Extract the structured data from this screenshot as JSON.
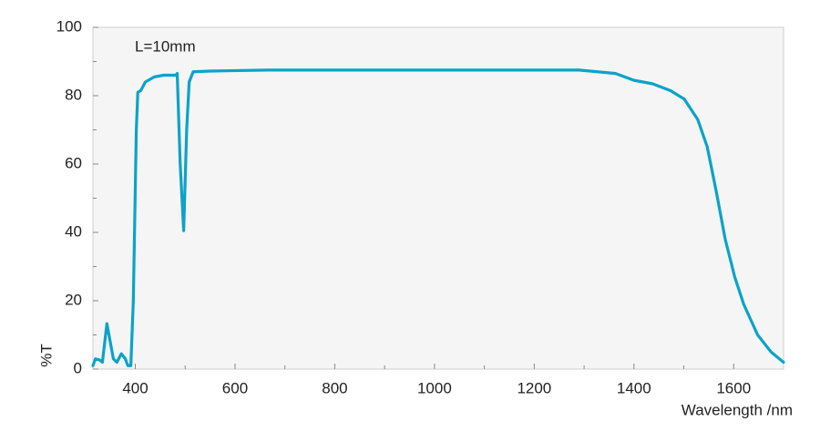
{
  "chart_data": {
    "type": "line",
    "annotation": "L=10mm",
    "x_label": "Wavelength /nm",
    "y_label": "%T",
    "xlim": [
      315,
      1700
    ],
    "ylim": [
      0,
      100
    ],
    "xticks": [
      400,
      600,
      800,
      1000,
      1200,
      1400,
      1600
    ],
    "x_minor_ticks": [
      500,
      700,
      900,
      1100,
      1300,
      1500
    ],
    "yticks": [
      0,
      20,
      40,
      60,
      80,
      100
    ],
    "y_minor_ticks": [
      10,
      30,
      50,
      70,
      90
    ],
    "grid": false,
    "series": [
      {
        "color": "#0ba3c7",
        "x": [
          315,
          320,
          328,
          334,
          343,
          356,
          363,
          372,
          380,
          385,
          391,
          396,
          402,
          405,
          411,
          420,
          438,
          457,
          481,
          484,
          490,
          497,
          503,
          508,
          516,
          549,
          666,
          849,
          1032,
          1217,
          1290,
          1327,
          1363,
          1400,
          1437,
          1473,
          1501,
          1528,
          1547,
          1565,
          1583,
          1602,
          1620,
          1648,
          1675,
          1700
        ],
        "values": [
          1,
          3,
          2.7,
          2,
          13.3,
          3,
          2,
          4.5,
          3,
          1,
          1,
          20,
          70,
          81,
          81.5,
          84,
          85.5,
          86,
          86,
          86.5,
          60,
          40.5,
          70,
          84,
          87,
          87.2,
          87.5,
          87.5,
          87.5,
          87.5,
          87.5,
          87,
          86.5,
          84.5,
          83.5,
          81.5,
          79,
          73,
          65,
          52,
          38,
          27,
          19,
          10,
          5,
          2
        ]
      }
    ]
  }
}
